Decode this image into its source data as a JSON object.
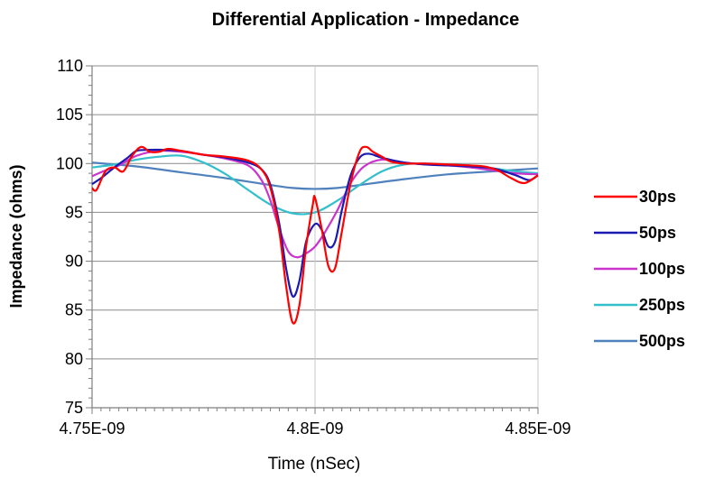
{
  "chart_data": {
    "type": "line",
    "title": "Differential Application - Impedance",
    "xlabel": "Time (nSec)",
    "ylabel": "Impedance (ohms)",
    "xlim": [
      4.75e-09,
      4.85e-09
    ],
    "ylim": [
      75,
      110
    ],
    "x_ticks": [
      {
        "value": 4.75e-09,
        "label": "4.75E-09"
      },
      {
        "value": 4.8e-09,
        "label": "4.8E-09"
      },
      {
        "value": 4.85e-09,
        "label": "4.85E-09"
      }
    ],
    "y_ticks": [
      {
        "value": 75,
        "label": "75"
      },
      {
        "value": 80,
        "label": "80"
      },
      {
        "value": 85,
        "label": "85"
      },
      {
        "value": 90,
        "label": "90"
      },
      {
        "value": 95,
        "label": "95"
      },
      {
        "value": 100,
        "label": "100"
      },
      {
        "value": 105,
        "label": "105"
      },
      {
        "value": 110,
        "label": "110"
      }
    ],
    "grid": "horizontal major lines, one vertical line at 4.8E-09",
    "legend_position": "right",
    "series": [
      {
        "name": "30ps",
        "color": "#ff0000",
        "x": [
          4.75e-09,
          4.751e-09,
          4.753e-09,
          4.755e-09,
          4.757e-09,
          4.759e-09,
          4.761e-09,
          4.763e-09,
          4.765e-09,
          4.767e-09,
          4.77e-09,
          4.775e-09,
          4.78e-09,
          4.785e-09,
          4.788e-09,
          4.79e-09,
          4.792e-09,
          4.7935e-09,
          4.795e-09,
          4.7965e-09,
          4.798e-09,
          4.7995e-09,
          4.8e-09,
          4.8015e-09,
          4.803e-09,
          4.8045e-09,
          4.806e-09,
          4.808e-09,
          4.81e-09,
          4.8115e-09,
          4.813e-09,
          4.815e-09,
          4.817e-09,
          4.82e-09,
          4.825e-09,
          4.83e-09,
          4.835e-09,
          4.838e-09,
          4.841e-09,
          4.844e-09,
          4.847e-09,
          4.85e-09
        ],
        "values": [
          97.5,
          97.3,
          99.2,
          99.6,
          99.2,
          100.8,
          101.7,
          101.2,
          101.2,
          101.5,
          101.3,
          100.9,
          100.7,
          100.3,
          99.4,
          97.5,
          93.0,
          87.5,
          83.7,
          85.5,
          91.5,
          95.8,
          96.5,
          93.3,
          89.5,
          89.3,
          93.0,
          98.0,
          101.2,
          101.7,
          101.2,
          100.7,
          100.2,
          100.0,
          100.0,
          99.9,
          99.8,
          99.7,
          99.3,
          98.5,
          98.0,
          98.8
        ]
      },
      {
        "name": "50ps",
        "color": "#1a1ab3",
        "x": [
          4.75e-09,
          4.752e-09,
          4.755e-09,
          4.758e-09,
          4.76e-09,
          4.763e-09,
          4.766e-09,
          4.77e-09,
          4.775e-09,
          4.78e-09,
          4.785e-09,
          4.788e-09,
          4.79e-09,
          4.792e-09,
          4.7935e-09,
          4.795e-09,
          4.7965e-09,
          4.798e-09,
          4.8e-09,
          4.8015e-09,
          4.803e-09,
          4.8045e-09,
          4.806e-09,
          4.808e-09,
          4.81e-09,
          4.812e-09,
          4.815e-09,
          4.82e-09,
          4.825e-09,
          4.83e-09,
          4.835e-09,
          4.84e-09,
          4.845e-09,
          4.848e-09,
          4.85e-09
        ],
        "values": [
          97.9,
          98.5,
          99.6,
          100.6,
          101.3,
          101.4,
          101.4,
          101.3,
          100.9,
          100.6,
          100.1,
          99.4,
          97.8,
          93.8,
          89.3,
          86.4,
          88.0,
          92.0,
          93.8,
          93.2,
          91.5,
          92.0,
          95.2,
          98.8,
          100.6,
          101.0,
          100.6,
          100.1,
          99.9,
          99.8,
          99.7,
          99.5,
          98.8,
          98.3,
          98.8
        ]
      },
      {
        "name": "100ps",
        "color": "#cc33cc",
        "x": [
          4.75e-09,
          4.753e-09,
          4.756e-09,
          4.76e-09,
          4.765e-09,
          4.77e-09,
          4.775e-09,
          4.78e-09,
          4.785e-09,
          4.788e-09,
          4.79e-09,
          4.792e-09,
          4.794e-09,
          4.796e-09,
          4.798e-09,
          4.8e-09,
          4.802e-09,
          4.805e-09,
          4.808e-09,
          4.811e-09,
          4.815e-09,
          4.82e-09,
          4.825e-09,
          4.83e-09,
          4.835e-09,
          4.84e-09,
          4.845e-09,
          4.85e-09
        ],
        "values": [
          98.7,
          99.3,
          99.8,
          100.8,
          101.3,
          101.2,
          100.9,
          100.5,
          99.8,
          98.3,
          96.2,
          93.3,
          91.0,
          90.4,
          90.8,
          91.5,
          92.8,
          95.2,
          98.0,
          99.7,
          100.4,
          100.1,
          99.9,
          99.8,
          99.6,
          99.3,
          99.0,
          98.9
        ]
      },
      {
        "name": "250ps",
        "color": "#33bfcc",
        "x": [
          4.75e-09,
          4.755e-09,
          4.76e-09,
          4.765e-09,
          4.77e-09,
          4.775e-09,
          4.78e-09,
          4.785e-09,
          4.79e-09,
          4.795e-09,
          4.8e-09,
          4.805e-09,
          4.81e-09,
          4.815e-09,
          4.82e-09,
          4.825e-09,
          4.83e-09,
          4.835e-09,
          4.84e-09,
          4.845e-09,
          4.85e-09
        ],
        "values": [
          99.6,
          99.9,
          100.4,
          100.7,
          100.8,
          100.1,
          98.9,
          97.3,
          95.8,
          94.9,
          95.0,
          96.2,
          97.8,
          99.2,
          99.9,
          100.0,
          99.9,
          99.8,
          99.5,
          99.2,
          99.0
        ]
      },
      {
        "name": "500ps",
        "color": "#4f81bd",
        "x": [
          4.75e-09,
          4.76e-09,
          4.77e-09,
          4.78e-09,
          4.79e-09,
          4.795e-09,
          4.8e-09,
          4.805e-09,
          4.81e-09,
          4.82e-09,
          4.83e-09,
          4.84e-09,
          4.85e-09
        ],
        "values": [
          100.1,
          99.7,
          99.1,
          98.5,
          97.8,
          97.5,
          97.4,
          97.5,
          97.8,
          98.4,
          98.9,
          99.2,
          99.5
        ]
      }
    ]
  }
}
